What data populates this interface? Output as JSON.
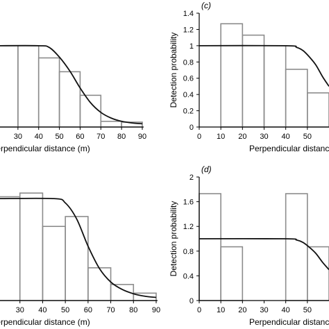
{
  "chart_data": [
    {
      "panel": "a",
      "type": "bar",
      "overlay": "line",
      "xlabel": "Perpendicular distance (m)",
      "ylabel": "",
      "panel_tag": "",
      "xlim": [
        20,
        90
      ],
      "ylim": [
        0,
        1.4
      ],
      "x_ticks": [
        "30",
        "40",
        "50",
        "60",
        "70",
        "80",
        "90"
      ],
      "y_ticks": [],
      "bars": [
        {
          "x0": 20,
          "x1": 30,
          "value": 1.0
        },
        {
          "x0": 30,
          "x1": 40,
          "value": 1.0
        },
        {
          "x0": 40,
          "x1": 50,
          "value": 0.85
        },
        {
          "x0": 50,
          "x1": 60,
          "value": 0.68
        },
        {
          "x0": 60,
          "x1": 70,
          "value": 0.39
        },
        {
          "x0": 70,
          "x1": 80,
          "value": 0.07
        },
        {
          "x0": 80,
          "x1": 90,
          "value": 0.06
        }
      ],
      "curve": {
        "x": [
          20,
          40,
          45,
          50,
          55,
          60,
          65,
          70,
          75,
          80,
          85,
          90
        ],
        "y": [
          1.0,
          1.0,
          0.98,
          0.86,
          0.69,
          0.48,
          0.3,
          0.18,
          0.11,
          0.07,
          0.05,
          0.04
        ]
      }
    },
    {
      "panel": "c",
      "type": "bar",
      "overlay": "line",
      "xlabel": "Perpendicular distance",
      "ylabel": "Detection probability",
      "panel_tag": "(c)",
      "xlim": [
        0,
        60
      ],
      "ylim": [
        0,
        1.4
      ],
      "x_ticks": [
        "0",
        "10",
        "20",
        "30",
        "40",
        "50"
      ],
      "y_ticks": [
        "0",
        "0.2",
        "0.4",
        "0.6",
        "0.8",
        "1",
        "1.2",
        "1.4"
      ],
      "bars": [
        {
          "x0": 10,
          "x1": 20,
          "value": 1.27
        },
        {
          "x0": 20,
          "x1": 30,
          "value": 1.13
        },
        {
          "x0": 30,
          "x1": 40,
          "value": 1.0
        },
        {
          "x0": 40,
          "x1": 50,
          "value": 0.71
        },
        {
          "x0": 50,
          "x1": 60,
          "value": 0.42
        }
      ],
      "curve": {
        "x": [
          0,
          40,
          45,
          48,
          51,
          54,
          57,
          60
        ],
        "y": [
          1.0,
          1.0,
          0.98,
          0.94,
          0.86,
          0.76,
          0.62,
          0.5
        ]
      }
    },
    {
      "panel": "b",
      "type": "bar",
      "overlay": "line",
      "xlabel": "Perpendicular distance (m)",
      "ylabel": "",
      "panel_tag": "",
      "xlim": [
        20,
        90
      ],
      "ylim": [
        0,
        2.0
      ],
      "x_ticks": [
        "30",
        "40",
        "50",
        "60",
        "70",
        "80",
        "90"
      ],
      "y_ticks": [],
      "bars": [
        {
          "x0": 20,
          "x1": 30,
          "value": 1.68
        },
        {
          "x0": 30,
          "x1": 40,
          "value": 1.74
        },
        {
          "x0": 40,
          "x1": 50,
          "value": 1.2
        },
        {
          "x0": 50,
          "x1": 60,
          "value": 1.36
        },
        {
          "x0": 60,
          "x1": 70,
          "value": 0.53
        },
        {
          "x0": 70,
          "x1": 80,
          "value": 0.26
        },
        {
          "x0": 80,
          "x1": 90,
          "value": 0.12
        }
      ],
      "curve": {
        "x": [
          20,
          45,
          50,
          55,
          60,
          65,
          70,
          75,
          80,
          85,
          90
        ],
        "y": [
          1.65,
          1.65,
          1.58,
          1.32,
          0.88,
          0.52,
          0.3,
          0.18,
          0.11,
          0.07,
          0.05
        ]
      }
    },
    {
      "panel": "d",
      "type": "bar",
      "overlay": "line",
      "xlabel": "Perpendicular distance",
      "ylabel": "Detection probability",
      "panel_tag": "(d)",
      "xlim": [
        0,
        60
      ],
      "ylim": [
        0,
        2.0
      ],
      "x_ticks": [
        "0",
        "10",
        "20",
        "30",
        "40",
        "50"
      ],
      "y_ticks": [
        "0",
        "0.4",
        "0.8",
        "1.2",
        "1.6",
        "2"
      ],
      "bars": [
        {
          "x0": 0,
          "x1": 10,
          "value": 1.73
        },
        {
          "x0": 10,
          "x1": 20,
          "value": 0.87
        },
        {
          "x0": 40,
          "x1": 50,
          "value": 1.73
        },
        {
          "x0": 50,
          "x1": 60,
          "value": 0.87
        }
      ],
      "curve": {
        "x": [
          0,
          40,
          45,
          48,
          51,
          54,
          57,
          60
        ],
        "y": [
          1.0,
          1.0,
          0.98,
          0.94,
          0.86,
          0.76,
          0.62,
          0.5
        ]
      }
    }
  ]
}
